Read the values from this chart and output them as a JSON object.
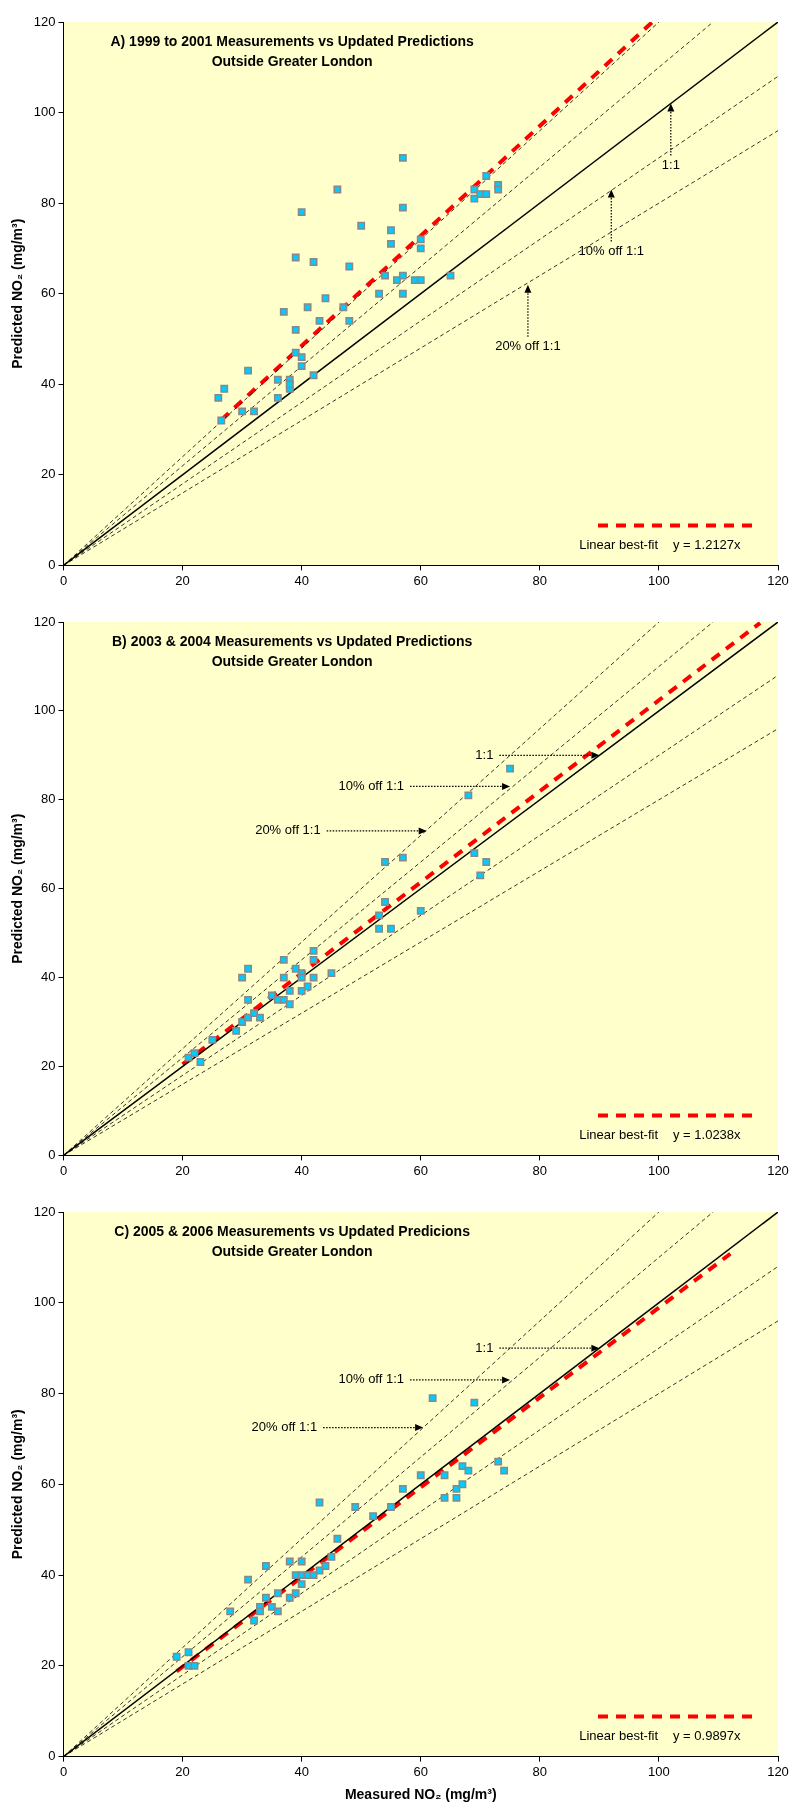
{
  "chart_data": [
    {
      "type": "scatter",
      "title": "A) 1999 to 2001 Measurements vs Updated Predictions",
      "subtitle": "Outside Greater London",
      "ylabel": "Predicted NO₂ (mg/m³)",
      "xlim": [
        0,
        120
      ],
      "ylim": [
        0,
        120
      ],
      "xticks": [
        0,
        20,
        40,
        60,
        80,
        100,
        120
      ],
      "yticks": [
        0,
        20,
        40,
        60,
        80,
        100,
        120
      ],
      "grid": false,
      "legend": "bottom right",
      "annotations": [
        {
          "text": "1:1",
          "x": 102,
          "y": 102
        },
        {
          "text": "10% off 1:1",
          "x": 92,
          "y": 83
        },
        {
          "text": "20% off 1:1",
          "x": 78,
          "y": 62
        },
        "y = 1.2127x"
      ],
      "series": [
        {
          "type": "scatter",
          "color": "#00ccff",
          "marker": "square",
          "x": [
            26,
            26.5,
            27,
            30,
            31,
            32,
            36,
            36,
            37,
            38,
            38,
            38,
            39,
            39,
            39,
            40,
            40,
            40,
            41,
            42,
            42,
            43,
            44,
            46,
            47,
            48,
            48,
            50,
            53,
            54,
            55,
            55,
            56,
            57,
            57,
            57,
            57,
            59,
            60,
            60,
            60,
            65,
            69,
            69,
            70,
            71,
            71,
            73,
            73
          ],
          "values": [
            37,
            32,
            39,
            34,
            43,
            34,
            37,
            41,
            56,
            41,
            39,
            40,
            68,
            47,
            52,
            44,
            46,
            78,
            57,
            42,
            67,
            54,
            59,
            83,
            57,
            54,
            66,
            75,
            60,
            64,
            74,
            71,
            63,
            90,
            79,
            64,
            60,
            63,
            63,
            72,
            70,
            64,
            83,
            81,
            82,
            86,
            82,
            84,
            83
          ]
        },
        {
          "type": "line",
          "color": "#000000",
          "line_style": "solid",
          "x": [
            0,
            120
          ],
          "values": [
            0,
            120
          ]
        },
        {
          "type": "line",
          "color": "#000000",
          "line_style": "dashed",
          "x": [
            0,
            100
          ],
          "values": [
            0,
            120
          ]
        },
        {
          "type": "line",
          "color": "#000000",
          "line_style": "dashed",
          "x": [
            0,
            109.1
          ],
          "values": [
            0,
            120
          ]
        },
        {
          "type": "line",
          "color": "#000000",
          "line_style": "dashed",
          "x": [
            0,
            120
          ],
          "values": [
            0,
            108
          ]
        },
        {
          "type": "line",
          "color": "#000000",
          "line_style": "dashed",
          "x": [
            0,
            120
          ],
          "values": [
            0,
            96
          ]
        },
        {
          "type": "line",
          "name": "Linear best-fit",
          "color": "#ff0000",
          "line_style": "dashed",
          "x": [
            26.5,
            98.9
          ],
          "values": [
            32.1,
            120
          ]
        }
      ]
    },
    {
      "type": "scatter",
      "title": "B) 2003 & 2004 Measurements vs Updated Predictions",
      "subtitle": "Outside Greater London",
      "ylabel": "Predicted NO₂ (mg/m³)",
      "xlim": [
        0,
        120
      ],
      "ylim": [
        0,
        120
      ],
      "xticks": [
        0,
        20,
        40,
        60,
        80,
        100,
        120
      ],
      "yticks": [
        0,
        20,
        40,
        60,
        80,
        100,
        120
      ],
      "grid": false,
      "legend": "bottom right",
      "annotations": [
        {
          "text": "1:1",
          "x": 90,
          "y": 90
        },
        {
          "text": "10% off 1:1",
          "x": 75,
          "y": 83
        },
        {
          "text": "20% off 1:1",
          "x": 61,
          "y": 73
        },
        "y = 1.0238x"
      ],
      "series": [
        {
          "type": "scatter",
          "color": "#00ccff",
          "marker": "square",
          "x": [
            21,
            22,
            23,
            25,
            29,
            30,
            30,
            31,
            31,
            31,
            32,
            33,
            35,
            36,
            37,
            37,
            37,
            38,
            38,
            39,
            40,
            40,
            40,
            41,
            42,
            42,
            42,
            45,
            53,
            53,
            54,
            54,
            55,
            57,
            60,
            68,
            69,
            70,
            71,
            75
          ],
          "values": [
            22,
            23,
            21,
            26,
            28,
            30,
            40,
            42,
            35,
            31,
            32,
            31,
            36,
            35,
            44,
            40,
            35,
            37,
            34,
            42,
            41,
            37,
            40,
            38,
            46,
            44,
            40,
            41,
            51,
            54,
            57,
            66,
            51,
            67,
            55,
            81,
            68,
            63,
            66,
            87
          ]
        },
        {
          "type": "line",
          "color": "#000000",
          "line_style": "solid",
          "x": [
            0,
            120
          ],
          "values": [
            0,
            120
          ]
        },
        {
          "type": "line",
          "color": "#000000",
          "line_style": "dashed",
          "x": [
            0,
            100
          ],
          "values": [
            0,
            120
          ]
        },
        {
          "type": "line",
          "color": "#000000",
          "line_style": "dashed",
          "x": [
            0,
            109.1
          ],
          "values": [
            0,
            120
          ]
        },
        {
          "type": "line",
          "color": "#000000",
          "line_style": "dashed",
          "x": [
            0,
            120
          ],
          "values": [
            0,
            108
          ]
        },
        {
          "type": "line",
          "color": "#000000",
          "line_style": "dashed",
          "x": [
            0,
            120
          ],
          "values": [
            0,
            96
          ]
        },
        {
          "type": "line",
          "name": "Linear best-fit",
          "color": "#ff0000",
          "line_style": "dashed",
          "x": [
            20,
            117
          ],
          "values": [
            20.5,
            119.8
          ]
        }
      ]
    },
    {
      "type": "scatter",
      "title": "C) 2005 & 2006 Measurements vs Updated Predicions",
      "subtitle": "Outside Greater London",
      "xlabel": "Measured NO₂ (mg/m³)",
      "ylabel": "Predicted NO₂ (mg/m³)",
      "xlim": [
        0,
        120
      ],
      "ylim": [
        0,
        120
      ],
      "xticks": [
        0,
        20,
        40,
        60,
        80,
        100,
        120
      ],
      "yticks": [
        0,
        20,
        40,
        60,
        80,
        100,
        120
      ],
      "grid": false,
      "legend": "bottom right",
      "annotations": [
        {
          "text": "1:1",
          "x": 90,
          "y": 90
        },
        {
          "text": "10% off 1:1",
          "x": 75,
          "y": 83
        },
        {
          "text": "20% off 1:1",
          "x": 60.4,
          "y": 72.5
        },
        "y = 0.9897x"
      ],
      "series": [
        {
          "type": "scatter",
          "color": "#00ccff",
          "marker": "square",
          "x": [
            19,
            21,
            21,
            22,
            28,
            31,
            32,
            33,
            33,
            34,
            34,
            35,
            36,
            36,
            38,
            38,
            39,
            39,
            40,
            40,
            40,
            41,
            42,
            43,
            43,
            44,
            45,
            46,
            49,
            52,
            55,
            57,
            60,
            62,
            64,
            64,
            66,
            66,
            67,
            67,
            68,
            69,
            73,
            74
          ],
          "values": [
            22,
            23,
            20,
            20,
            32,
            39,
            30,
            33,
            32,
            42,
            35,
            33,
            36,
            32,
            43,
            35,
            36,
            40,
            38,
            43,
            40,
            40,
            40,
            56,
            41,
            42,
            44,
            48,
            55,
            53,
            55,
            59,
            62,
            79,
            57,
            62,
            57,
            59,
            60,
            64,
            63,
            78,
            65,
            63
          ]
        },
        {
          "type": "line",
          "color": "#000000",
          "line_style": "solid",
          "x": [
            0,
            120
          ],
          "values": [
            0,
            120
          ]
        },
        {
          "type": "line",
          "color": "#000000",
          "line_style": "dashed",
          "x": [
            0,
            100
          ],
          "values": [
            0,
            120
          ]
        },
        {
          "type": "line",
          "color": "#000000",
          "line_style": "dashed",
          "x": [
            0,
            109.1
          ],
          "values": [
            0,
            120
          ]
        },
        {
          "type": "line",
          "color": "#000000",
          "line_style": "dashed",
          "x": [
            0,
            120
          ],
          "values": [
            0,
            108
          ]
        },
        {
          "type": "line",
          "color": "#000000",
          "line_style": "dashed",
          "x": [
            0,
            120
          ],
          "values": [
            0,
            96
          ]
        },
        {
          "type": "line",
          "name": "Linear best-fit",
          "color": "#ff0000",
          "line_style": "dashed",
          "x": [
            19,
            112
          ],
          "values": [
            18.8,
            110.8
          ]
        }
      ]
    }
  ]
}
